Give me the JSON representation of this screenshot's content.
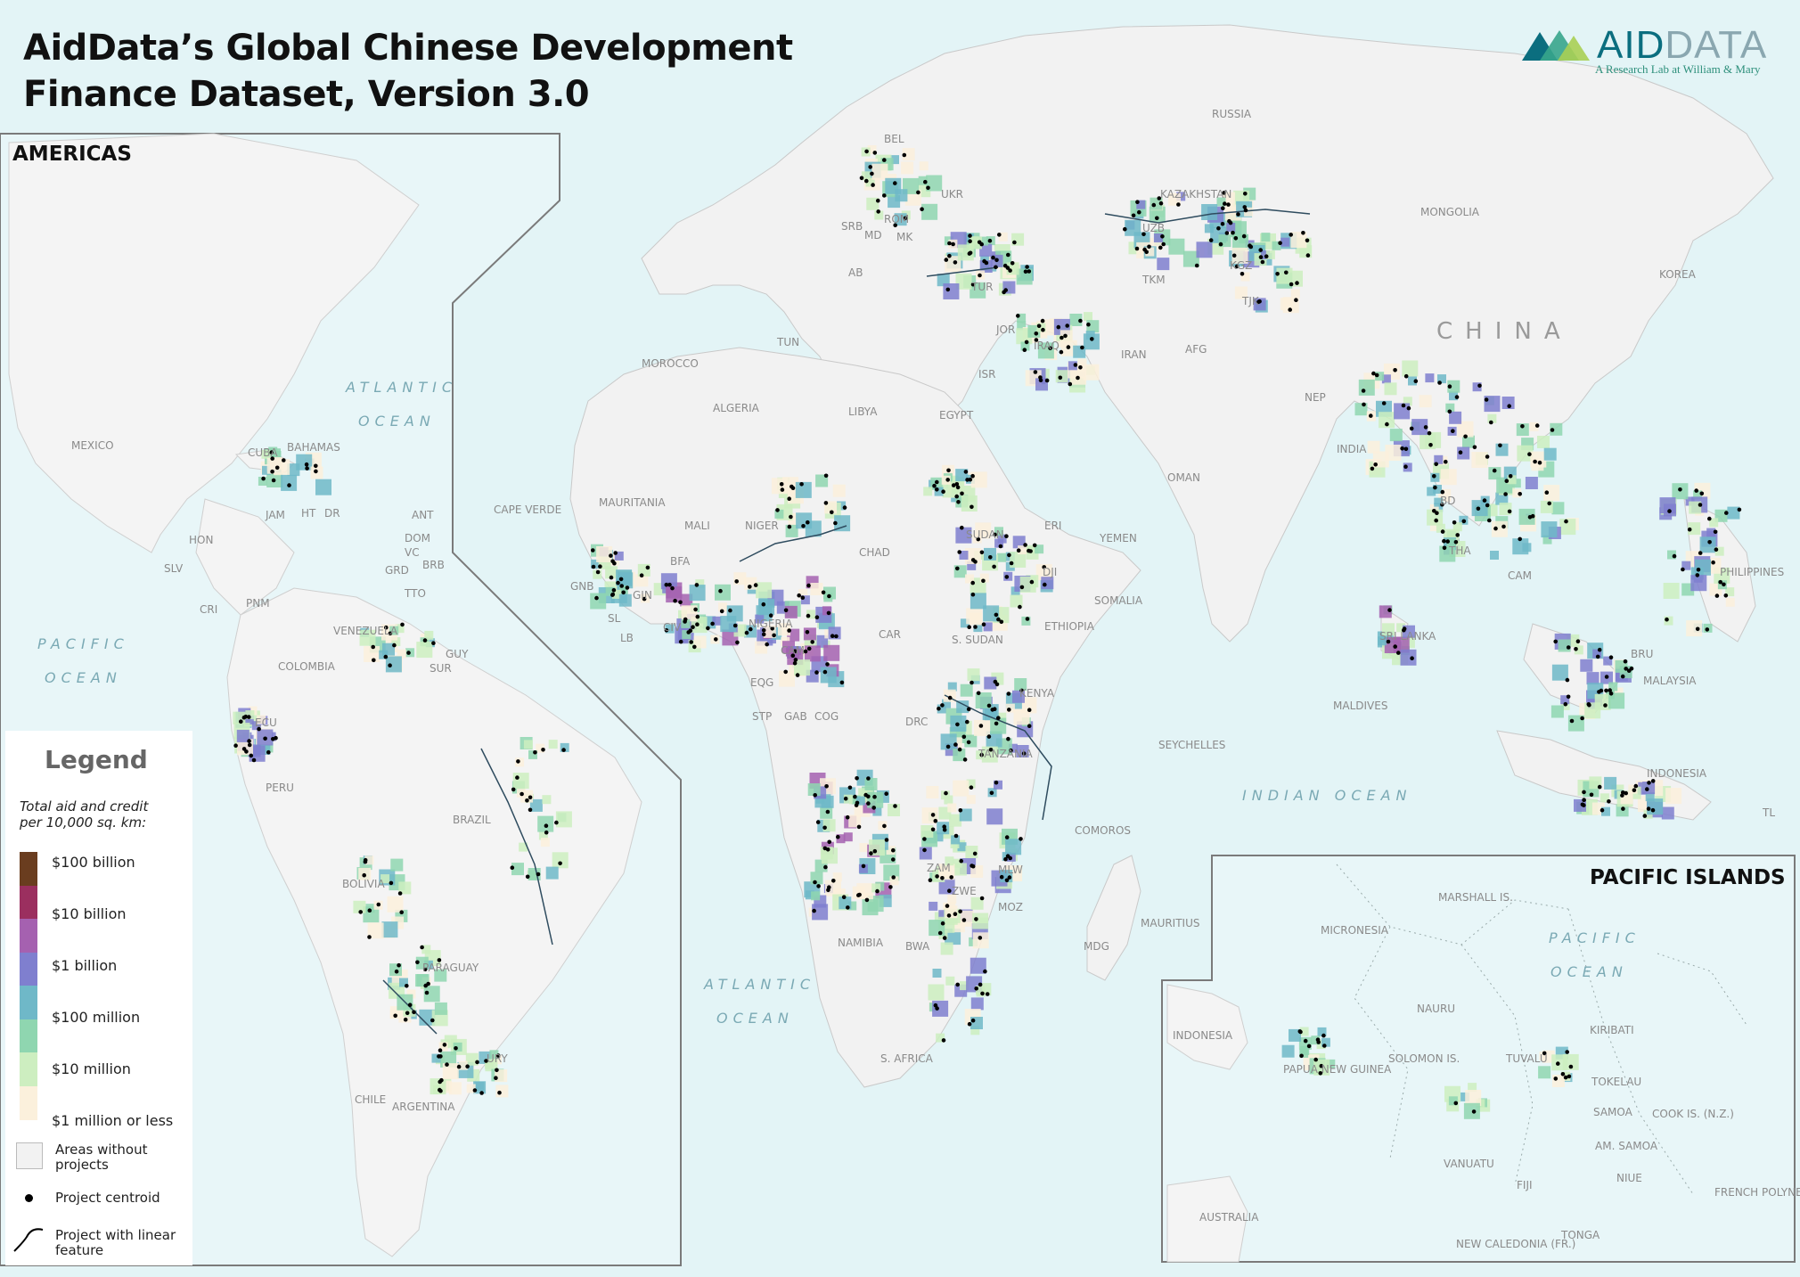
{
  "title": {
    "line1": "AidData’s Global Chinese Development",
    "line2": "Finance Dataset, Version 3.0"
  },
  "brand": {
    "name_a": "AID",
    "name_b": "DATA",
    "subtitle": "A Research Lab at William & Mary",
    "logo_colors": [
      "#0b6e7f",
      "#37a58c",
      "#a9cf54"
    ]
  },
  "panels": {
    "americas": "AMERICAS",
    "pacific": "PACIFIC ISLANDS"
  },
  "legend": {
    "title": "Legend",
    "subtitle_line1": "Total aid and credit",
    "subtitle_line2": "per 10,000 sq. km:",
    "ticks": [
      "$100 billion",
      "$10 billion",
      "$1 billion",
      "$100 million",
      "$10 million",
      "$1 million or less"
    ],
    "ramp_colors": [
      "#6a3d1f",
      "#9b2f5f",
      "#a561b0",
      "#7f7fcf",
      "#6fb8c8",
      "#8fd6b0",
      "#cdeec0",
      "#fbf0dc"
    ],
    "no_projects": "Areas without projects",
    "centroid": "Project centroid",
    "linear": "Project with linear feature"
  },
  "colors": {
    "ocean": "#e3f4f6",
    "land": "#f2f2f2",
    "border": "#d0d0d0",
    "panel_frame": "#7a7a7a",
    "low_value_tint": "#fbf0dc"
  },
  "labels": {
    "oceans": [
      {
        "id": "atlantic-americas-1",
        "text": "ATLANTIC"
      },
      {
        "id": "atlantic-americas-2",
        "text": "OCEAN"
      },
      {
        "id": "pacific-americas-1",
        "text": "PACIFIC"
      },
      {
        "id": "pacific-americas-2",
        "text": "OCEAN"
      },
      {
        "id": "atlantic-africa-1",
        "text": "ATLANTIC"
      },
      {
        "id": "atlantic-africa-2",
        "text": "OCEAN"
      },
      {
        "id": "indian",
        "text": "INDIAN OCEAN"
      },
      {
        "id": "pacific-islands-1",
        "text": "PACIFIC"
      },
      {
        "id": "pacific-islands-2",
        "text": "OCEAN"
      }
    ],
    "china": "CHINA",
    "countries": [
      "RUSSIA",
      "BEL",
      "UKR",
      "ROM",
      "SRB",
      "MD",
      "MK",
      "AB",
      "TUR",
      "KAZAKHSTAN",
      "UZB",
      "KGZ",
      "TJK",
      "TKM",
      "MONGOLIA",
      "KOREA",
      "MOROCCO",
      "TUN",
      "ALGERIA",
      "LIBYA",
      "EGYPT",
      "JOR",
      "ISR",
      "IRAQ",
      "IRAN",
      "AFG",
      "NEP",
      "INDIA",
      "OMAN",
      "YEMEN",
      "SOMALIA",
      "ETHIOPIA",
      "DJI",
      "ERI",
      "SUDAN",
      "S. SUDAN",
      "CHAD",
      "NIGER",
      "MALI",
      "MAURITANIA",
      "CAPE VERDE",
      "BFA",
      "GIN",
      "GNB",
      "SL",
      "LB",
      "CIV",
      "NIGERIA",
      "CAM",
      "CAR",
      "EQG",
      "GAB",
      "STP",
      "COG",
      "DRC",
      "KENYA",
      "TANZANIA",
      "ZAM",
      "MLW",
      "MOZ",
      "ZWE",
      "BWA",
      "NAMIBIA",
      "S. AFRICA",
      "COMOROS",
      "MDG",
      "MAURITIUS",
      "SEYCHELLES",
      "MALDIVES",
      "SRI LANKA",
      "BD",
      "THA",
      "CAM",
      "PHILIPPINES",
      "MALAYSIA",
      "INDONESIA",
      "BRU",
      "TL",
      "MEXICO",
      "CUBA",
      "BAHAMAS",
      "JAM",
      "HT",
      "DR",
      "HON",
      "SLV",
      "CRI",
      "PNM",
      "ANT",
      "DOM",
      "BRB",
      "VC",
      "GRD",
      "TTO",
      "VENEZUELA",
      "GUY",
      "SUR",
      "COLOMBIA",
      "ECU",
      "PERU",
      "BRAZIL",
      "BOLIVIA",
      "PARAGUAY",
      "URY",
      "CHILE",
      "ARGENTINA",
      "MARSHALL IS.",
      "MICRONESIA",
      "NAURU",
      "KIRIBATI",
      "INDONESIA",
      "PAPUA NEW GUINEA",
      "SOLOMON IS.",
      "TUVALU",
      "TOKELAU",
      "SAMOA",
      "AM. SAMOA",
      "COOK IS. (N.Z.)",
      "VANUATU",
      "FIJI",
      "NIUE",
      "TONGA",
      "FRENCH POLYNESIA",
      "NEW CALEDONIA (FR.)",
      "AUSTRALIA"
    ]
  }
}
